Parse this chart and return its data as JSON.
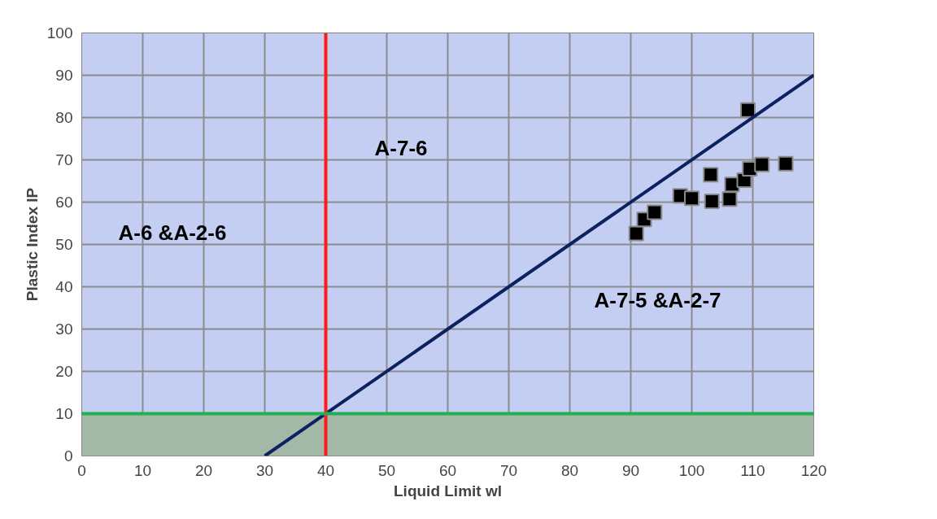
{
  "chart_data": {
    "type": "scatter",
    "xlabel": "Liquid Limit wl",
    "ylabel": "Plastic Index IP",
    "xlim": [
      0,
      120
    ],
    "ylim": [
      0,
      100
    ],
    "xticks": [
      0,
      10,
      20,
      30,
      40,
      50,
      60,
      70,
      80,
      90,
      100,
      110,
      120
    ],
    "yticks": [
      0,
      10,
      20,
      30,
      40,
      50,
      60,
      70,
      80,
      90,
      100
    ],
    "grid": true,
    "series": [
      {
        "marker": "square",
        "color": "#000000",
        "x": [
          90.9,
          92.2,
          93.9,
          98.1,
          100,
          103.1,
          103.3,
          106.2,
          106.6,
          108.6,
          109.5,
          111.5,
          115.4,
          109.2
        ],
        "values": [
          52.6,
          55.9,
          57.6,
          61.5,
          60.9,
          66.5,
          60.2,
          60.7,
          64.2,
          65.2,
          67.9,
          68.9,
          69.1,
          81.8
        ]
      },
      {
        "type": "line",
        "color": "#0b2160",
        "x": [
          30,
          120
        ],
        "values": [
          0,
          90
        ]
      }
    ],
    "ref_lines": [
      {
        "axis": "x",
        "value": 40,
        "color": "#ff1a1a"
      },
      {
        "axis": "y",
        "value": 10,
        "color": "#1fb050"
      }
    ],
    "bands": [
      {
        "axis": "y",
        "from": 0,
        "to": 10,
        "color": "#a4b8a8"
      }
    ],
    "annotations": [
      "A-7-6",
      "A-6 &A-2-6",
      "A-7-5 &A-2-7"
    ]
  }
}
